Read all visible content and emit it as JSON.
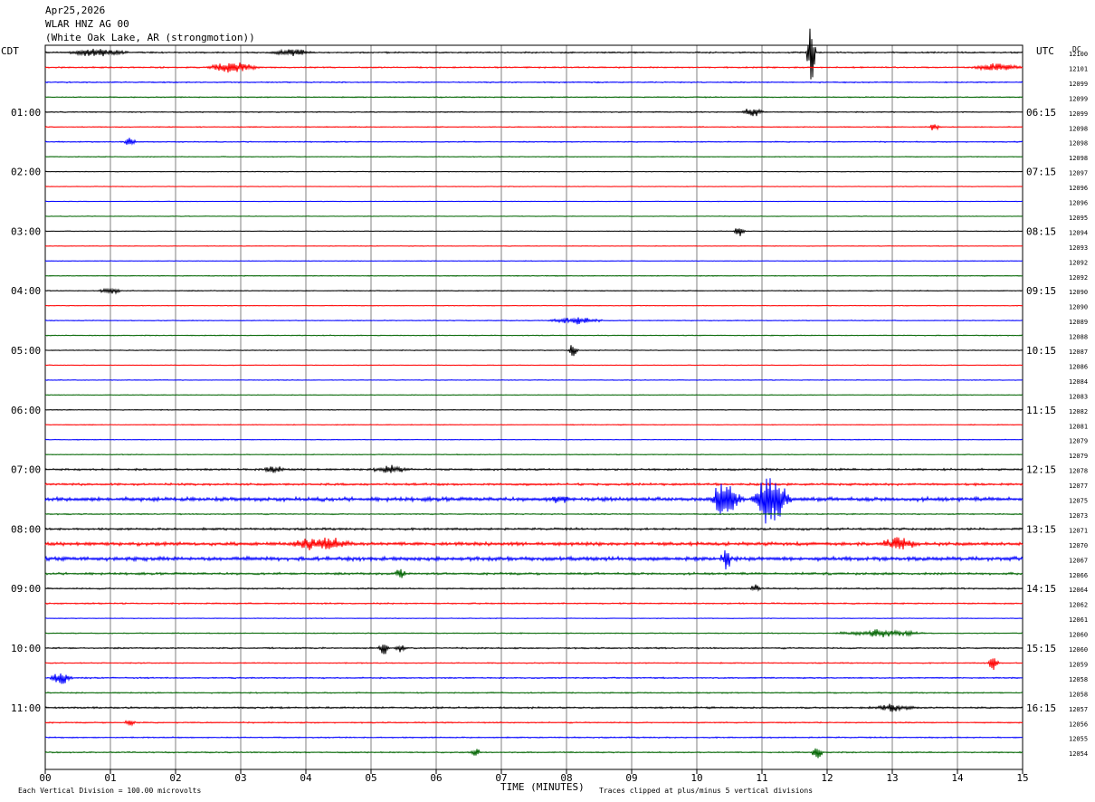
{
  "header": {
    "date": "Apr25,2026",
    "station": "WLAR HNZ AG 00",
    "location": "(White Oak Lake, AR (strongmotion))",
    "left_tz": "CDT",
    "right_tz": "UTC",
    "dc_label": "DC"
  },
  "footer": {
    "scale_note": "Each Vertical Division =  100.00 microvolts",
    "xlabel": "TIME (MINUTES)",
    "clip_note": "Traces clipped at plus/minus 5 vertical divisions"
  },
  "colors": {
    "trace_cycle": [
      "#000000",
      "#ff0000",
      "#0000ff",
      "#006400"
    ],
    "grid": "#808080",
    "background": "#ffffff"
  },
  "chart_data": {
    "type": "line",
    "subtype": "helicorder",
    "xlabel": "TIME (MINUTES)",
    "xlim": [
      0,
      15
    ],
    "x_ticks": [
      "00",
      "01",
      "02",
      "03",
      "04",
      "05",
      "06",
      "07",
      "08",
      "09",
      "10",
      "11",
      "12",
      "13",
      "14",
      "15"
    ],
    "minutes_per_line": 15,
    "line_count": 48,
    "left_time_labels": [
      {
        "line": 4,
        "text": "01:00"
      },
      {
        "line": 8,
        "text": "02:00"
      },
      {
        "line": 12,
        "text": "03:00"
      },
      {
        "line": 16,
        "text": "04:00"
      },
      {
        "line": 20,
        "text": "05:00"
      },
      {
        "line": 24,
        "text": "06:00"
      },
      {
        "line": 28,
        "text": "07:00"
      },
      {
        "line": 32,
        "text": "08:00"
      },
      {
        "line": 36,
        "text": "09:00"
      },
      {
        "line": 40,
        "text": "10:00"
      },
      {
        "line": 44,
        "text": "11:00"
      }
    ],
    "right_time_labels": [
      {
        "line": 4,
        "text": "06:15"
      },
      {
        "line": 8,
        "text": "07:15"
      },
      {
        "line": 12,
        "text": "08:15"
      },
      {
        "line": 16,
        "text": "09:15"
      },
      {
        "line": 20,
        "text": "10:15"
      },
      {
        "line": 24,
        "text": "11:15"
      },
      {
        "line": 28,
        "text": "12:15"
      },
      {
        "line": 32,
        "text": "13:15"
      },
      {
        "line": 36,
        "text": "14:15"
      },
      {
        "line": 40,
        "text": "15:15"
      },
      {
        "line": 44,
        "text": "16:15"
      }
    ],
    "dc_offsets": [
      12100,
      12101,
      12099,
      12099,
      12099,
      12098,
      12098,
      12098,
      12097,
      12096,
      12096,
      12095,
      12094,
      12093,
      12092,
      12092,
      12090,
      12090,
      12089,
      12088,
      12087,
      12086,
      12084,
      12083,
      12082,
      12081,
      12079,
      12079,
      12078,
      12077,
      12075,
      12073,
      12071,
      12070,
      12067,
      12066,
      12064,
      12062,
      12061,
      12060,
      12060,
      12059,
      12058,
      12058,
      12057,
      12056,
      12055,
      12054
    ],
    "noise_level": [
      0.6,
      0.55,
      0.5,
      0.45,
      0.45,
      0.4,
      0.45,
      0.35,
      0.3,
      0.25,
      0.25,
      0.25,
      0.3,
      0.25,
      0.3,
      0.35,
      0.4,
      0.3,
      0.35,
      0.35,
      0.35,
      0.3,
      0.3,
      0.3,
      0.35,
      0.35,
      0.35,
      0.35,
      0.8,
      0.9,
      1.6,
      0.5,
      0.9,
      1.4,
      1.6,
      0.9,
      0.6,
      0.55,
      0.3,
      0.4,
      0.6,
      0.45,
      0.55,
      0.5,
      0.7,
      0.5,
      0.5,
      0.5
    ],
    "events": [
      {
        "line": 0,
        "minute": 11.75,
        "amplitude": 6.5,
        "duration": 0.08
      },
      {
        "line": 0,
        "minute": 0.8,
        "amplitude": 0.8,
        "duration": 0.6
      },
      {
        "line": 0,
        "minute": 3.8,
        "amplitude": 0.7,
        "duration": 0.4
      },
      {
        "line": 1,
        "minute": 2.9,
        "amplitude": 1.0,
        "duration": 0.5
      },
      {
        "line": 1,
        "minute": 14.6,
        "amplitude": 0.8,
        "duration": 0.5
      },
      {
        "line": 4,
        "minute": 10.85,
        "amplitude": 0.9,
        "duration": 0.2
      },
      {
        "line": 5,
        "minute": 13.65,
        "amplitude": 0.8,
        "duration": 0.1
      },
      {
        "line": 6,
        "minute": 1.3,
        "amplitude": 1.0,
        "duration": 0.1
      },
      {
        "line": 12,
        "minute": 10.65,
        "amplitude": 1.4,
        "duration": 0.1
      },
      {
        "line": 16,
        "minute": 1.0,
        "amplitude": 0.7,
        "duration": 0.2
      },
      {
        "line": 18,
        "minute": 8.15,
        "amplitude": 0.7,
        "duration": 0.5
      },
      {
        "line": 20,
        "minute": 8.1,
        "amplitude": 1.2,
        "duration": 0.1
      },
      {
        "line": 28,
        "minute": 3.5,
        "amplitude": 0.9,
        "duration": 0.2
      },
      {
        "line": 28,
        "minute": 5.3,
        "amplitude": 0.7,
        "duration": 0.4
      },
      {
        "line": 30,
        "minute": 10.45,
        "amplitude": 5.0,
        "duration": 0.25
      },
      {
        "line": 30,
        "minute": 11.15,
        "amplitude": 5.0,
        "duration": 0.35
      },
      {
        "line": 30,
        "minute": 7.9,
        "amplitude": 0.9,
        "duration": 0.3
      },
      {
        "line": 33,
        "minute": 4.25,
        "amplitude": 1.5,
        "duration": 0.6
      },
      {
        "line": 33,
        "minute": 13.1,
        "amplitude": 1.2,
        "duration": 0.4
      },
      {
        "line": 34,
        "minute": 10.45,
        "amplitude": 2.5,
        "duration": 0.1
      },
      {
        "line": 35,
        "minute": 5.45,
        "amplitude": 1.3,
        "duration": 0.1
      },
      {
        "line": 36,
        "minute": 10.9,
        "amplitude": 0.8,
        "duration": 0.1
      },
      {
        "line": 39,
        "minute": 12.8,
        "amplitude": 0.7,
        "duration": 0.8
      },
      {
        "line": 40,
        "minute": 5.2,
        "amplitude": 1.5,
        "duration": 0.1
      },
      {
        "line": 40,
        "minute": 5.45,
        "amplitude": 1.0,
        "duration": 0.1
      },
      {
        "line": 41,
        "minute": 14.55,
        "amplitude": 1.6,
        "duration": 0.1
      },
      {
        "line": 42,
        "minute": 0.25,
        "amplitude": 1.4,
        "duration": 0.2
      },
      {
        "line": 44,
        "minute": 13.0,
        "amplitude": 0.7,
        "duration": 0.5
      },
      {
        "line": 45,
        "minute": 1.3,
        "amplitude": 0.7,
        "duration": 0.1
      },
      {
        "line": 47,
        "minute": 6.6,
        "amplitude": 0.9,
        "duration": 0.1
      },
      {
        "line": 47,
        "minute": 11.85,
        "amplitude": 1.6,
        "duration": 0.1
      }
    ]
  }
}
